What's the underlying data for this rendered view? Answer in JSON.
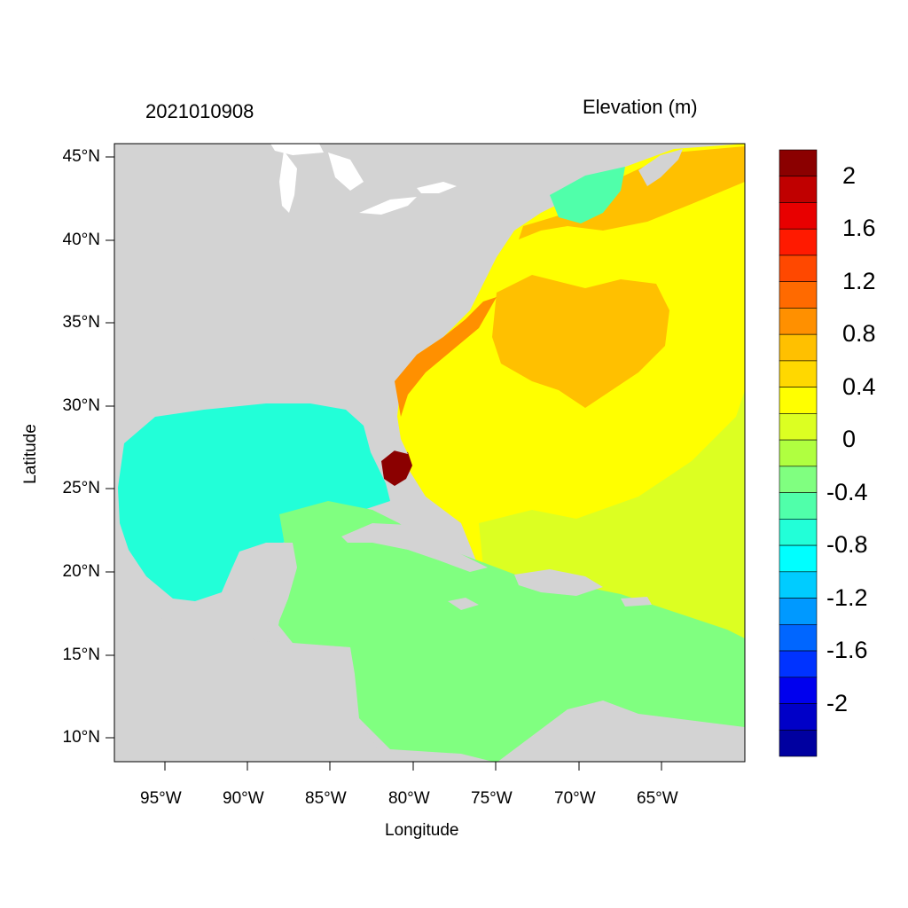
{
  "header": {
    "date_label": "2021010908",
    "variable_label": "Elevation (m)"
  },
  "axes": {
    "xlabel": "Longitude",
    "ylabel": "Latitude",
    "lon_ticks": [
      "95°W",
      "90°W",
      "85°W",
      "80°W",
      "75°W",
      "70°W",
      "65°W"
    ],
    "lat_ticks": [
      "45°N",
      "40°N",
      "35°N",
      "30°N",
      "25°N",
      "20°N",
      "15°N",
      "10°N"
    ]
  },
  "colorbar": {
    "labels": [
      "2",
      "1.6",
      "1.2",
      "0.8",
      "0.4",
      "0",
      "-0.4",
      "-0.8",
      "-1.2",
      "-1.6",
      "-2"
    ],
    "colors": [
      "#8b0000",
      "#c00000",
      "#e80000",
      "#ff1a00",
      "#ff4800",
      "#ff6a00",
      "#ff9000",
      "#ffc000",
      "#ffd800",
      "#ffff00",
      "#dcff22",
      "#b0ff40",
      "#80ff80",
      "#50ffaa",
      "#22ffd8",
      "#00ffff",
      "#00ccff",
      "#0099ff",
      "#0066ff",
      "#0033ff",
      "#0000ee",
      "#0000c8",
      "#0000a0"
    ]
  },
  "map": {
    "land_color": "#d3d3d3",
    "water_color": "#ffffff",
    "field_colors": {
      "gulf": "#22ffd8",
      "caribbean": "#80ff80",
      "atlantic_high": "#ffff00",
      "atlantic_mid": "#dcff22",
      "eddy": "#ffc000",
      "coastal_setup": "#ff9000",
      "surge_max": "#8b0000",
      "northeast_low": "#50ffaa"
    }
  }
}
